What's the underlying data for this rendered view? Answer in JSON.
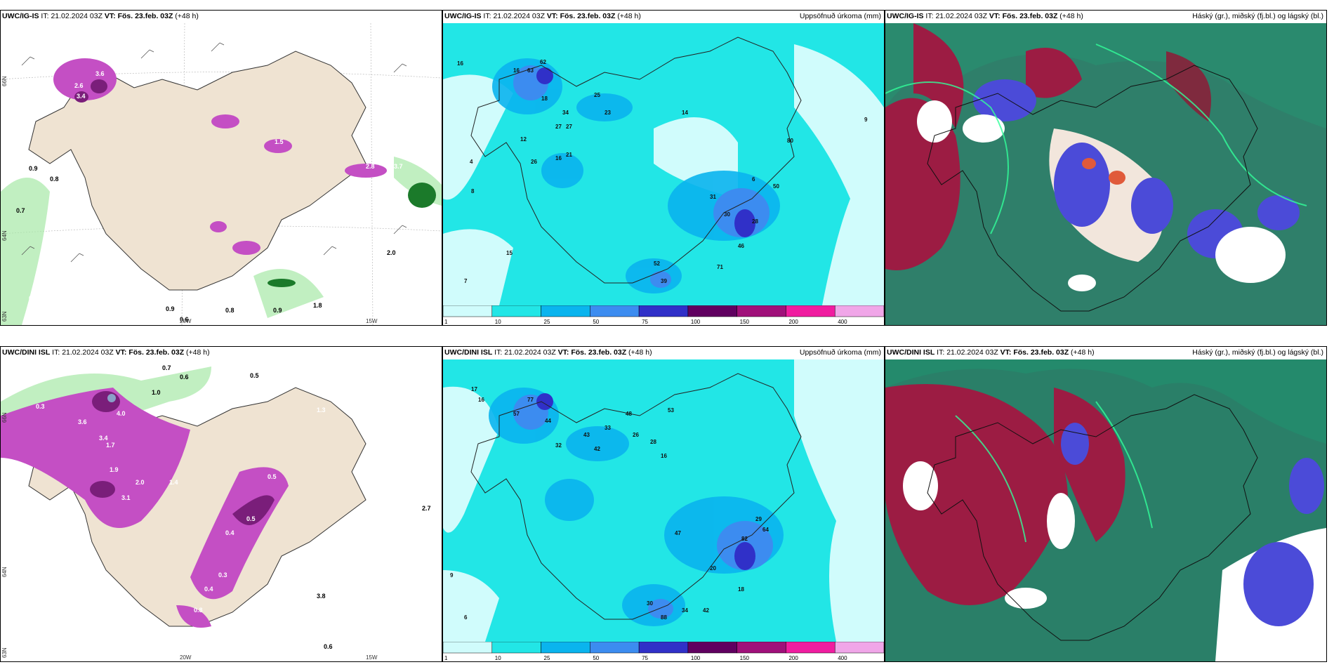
{
  "panels": [
    {
      "model": "UWC/IG-IS",
      "it_label": "IT:",
      "it": "21.02.2024 03Z",
      "vt_label": "VT:",
      "vt": "Fös. 23.feb. 03Z",
      "lead": "(+48 h)",
      "right_title": "",
      "kind": "wind",
      "lat_labels": [
        "66N",
        "64N",
        "63N"
      ],
      "lon_labels": [
        "20W",
        "15W"
      ],
      "values": [
        "3.6",
        "2.6",
        "3.4",
        "0.9",
        "1.0",
        "0.8",
        "0.7",
        "0.2",
        "1.5",
        "2.8",
        "2.9",
        "3.7",
        "2.0",
        "1.5",
        "0.8",
        "1.5",
        "0.9",
        "0.5",
        "0.6",
        "0.8",
        "0.4",
        "0.9",
        "1.8",
        "0.7"
      ]
    },
    {
      "model": "UWC/IG-IS",
      "it_label": "IT:",
      "it": "21.02.2024 03Z",
      "vt_label": "VT:",
      "vt": "Fös. 23.feb. 03Z",
      "lead": "(+48 h)",
      "right_title": "Uppsöfnuð úrkoma (mm)",
      "kind": "precip",
      "values": [
        "16",
        "16",
        "18",
        "62",
        "63",
        "34",
        "27",
        "27",
        "12",
        "26",
        "16",
        "21",
        "8",
        "4",
        "25",
        "23",
        "14",
        "6",
        "31",
        "30",
        "40",
        "28",
        "50",
        "46",
        "39",
        "52",
        "80",
        "71",
        "12",
        "9",
        "3",
        "7",
        "15"
      ]
    },
    {
      "model": "UWC/IG-IS",
      "it_label": "IT:",
      "it": "21.02.2024 03Z",
      "vt_label": "VT:",
      "vt": "Fös. 23.feb. 03Z",
      "lead": "(+48 h)",
      "right_title": "Háský (gr.), miðský (fj.bl.) og lágský (bl.)",
      "kind": "cloud"
    },
    {
      "model": "UWC/DINI ISL",
      "it_label": "IT:",
      "it": "21.02.2024 03Z",
      "vt_label": "VT:",
      "vt": "Fös. 23.feb. 03Z",
      "lead": "(+48 h)",
      "right_title": "",
      "kind": "wind",
      "lat_labels": [
        "66N",
        "64N",
        "63N"
      ],
      "lon_labels": [
        "20W",
        "15W"
      ],
      "values": [
        "0.7",
        "0.6",
        "0.5",
        "1.0",
        "0.3",
        "3.6",
        "4.0",
        "3.4",
        "1.7",
        "3.1",
        "2.0",
        "1.4",
        "1.9",
        "0.3",
        "0.5",
        "0.5",
        "0.4",
        "0.3",
        "0.4",
        "0.8",
        "2.7",
        "3.8",
        "0.6",
        "1.3"
      ]
    },
    {
      "model": "UWC/DINI ISL",
      "it_label": "IT:",
      "it": "21.02.2024 03Z",
      "vt_label": "VT:",
      "vt": "Fös. 23.feb. 03Z",
      "lead": "(+48 h)",
      "right_title": "Uppsöfnuð úrkoma (mm)",
      "kind": "precip",
      "values": [
        "17",
        "16",
        "57",
        "77",
        "44",
        "32",
        "43",
        "42",
        "33",
        "26",
        "28",
        "16",
        "12",
        "11",
        "19",
        "53",
        "48",
        "29",
        "82",
        "64",
        "47",
        "88",
        "30",
        "34",
        "42",
        "20",
        "18",
        "25",
        "13",
        "14",
        "9",
        "7",
        "6"
      ]
    },
    {
      "model": "UWC/DINI ISL",
      "it_label": "IT:",
      "it": "21.02.2024 03Z",
      "vt_label": "VT:",
      "vt": "Fös. 23.feb. 03Z",
      "lead": "(+48 h)",
      "right_title": "Háský (gr.), miðský (fj.bl.) og lágský (bl.)",
      "kind": "cloud"
    }
  ],
  "legend": {
    "ticks": [
      "1",
      "10",
      "25",
      "50",
      "75",
      "100",
      "150",
      "200",
      "400"
    ],
    "colors": [
      "#d0fcfc",
      "#22e6e6",
      "#0ab4ee",
      "#3c8cf0",
      "#3030c8",
      "#600060",
      "#a0107a",
      "#f01ca0",
      "#f0a6e8"
    ]
  }
}
